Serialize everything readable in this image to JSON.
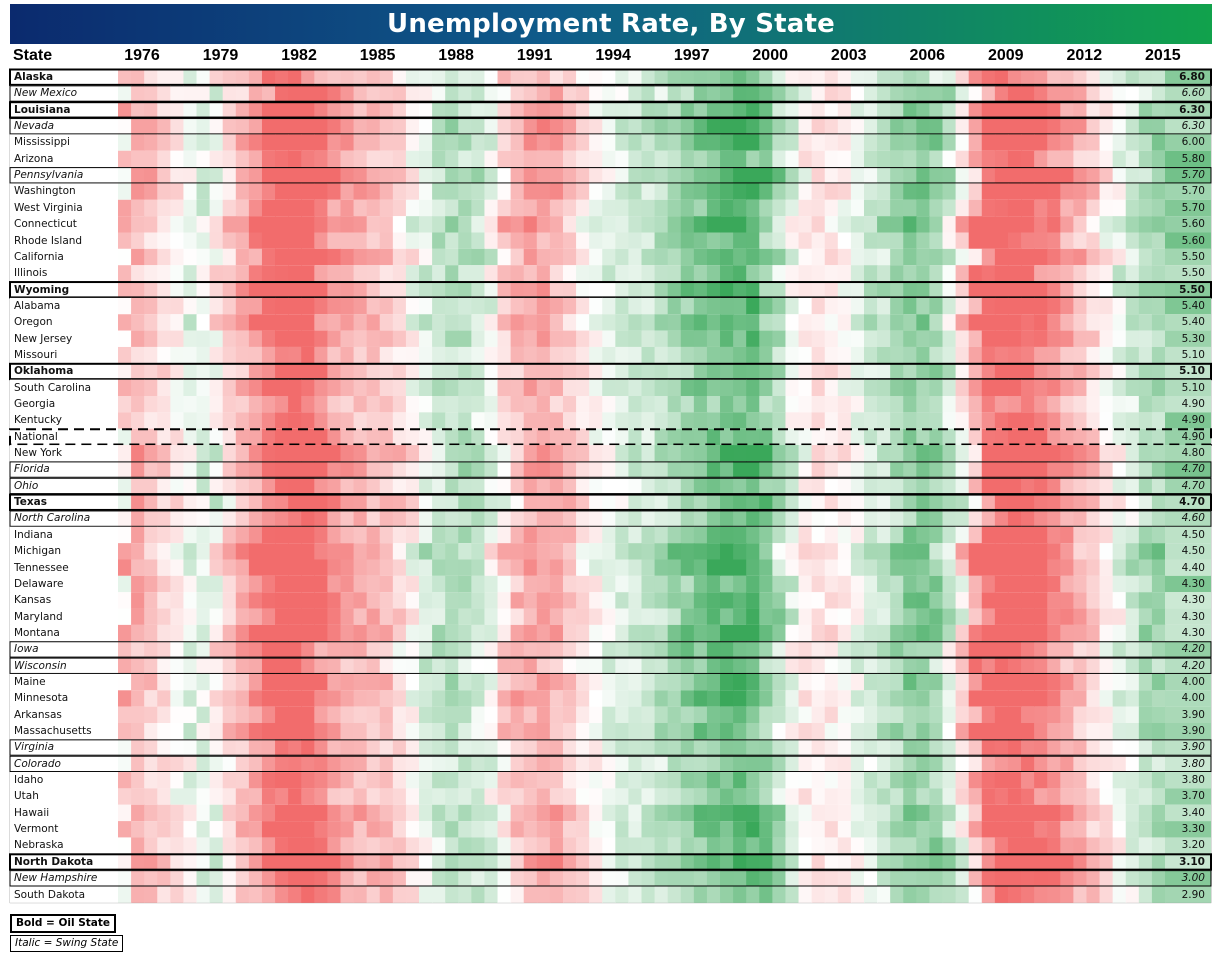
{
  "title": "Unemployment Rate, By State",
  "chart_data": {
    "type": "heatmap",
    "title": "Unemployment Rate, By State",
    "column_header": "State",
    "x_ticks": [
      "1976",
      "1979",
      "1982",
      "1985",
      "1988",
      "1991",
      "1994",
      "1997",
      "2000",
      "2003",
      "2006",
      "2009",
      "2012",
      "2015"
    ],
    "x_range": [
      1976,
      2016
    ],
    "color_scale": {
      "high": "#f26b6b",
      "mid": "#ffffff",
      "low": "#3aa85a"
    },
    "rows": [
      {
        "state": "Alaska",
        "value": "6.80",
        "style": "bold",
        "base": 6.8
      },
      {
        "state": "New Mexico",
        "value": "6.60",
        "style": "italic",
        "base": 6.6
      },
      {
        "state": "Louisiana",
        "value": "6.30",
        "style": "bold",
        "base": 6.3
      },
      {
        "state": "Nevada",
        "value": "6.30",
        "style": "italic",
        "base": 6.3
      },
      {
        "state": "Mississippi",
        "value": "6.00",
        "style": "normal",
        "base": 6.0
      },
      {
        "state": "Arizona",
        "value": "5.80",
        "style": "normal",
        "base": 5.8
      },
      {
        "state": "Pennsylvania",
        "value": "5.70",
        "style": "italic",
        "base": 5.7
      },
      {
        "state": "Washington",
        "value": "5.70",
        "style": "normal",
        "base": 5.7
      },
      {
        "state": "West Virginia",
        "value": "5.70",
        "style": "normal",
        "base": 5.7
      },
      {
        "state": "Connecticut",
        "value": "5.60",
        "style": "normal",
        "base": 5.6
      },
      {
        "state": "Rhode Island",
        "value": "5.60",
        "style": "normal",
        "base": 5.6
      },
      {
        "state": "California",
        "value": "5.50",
        "style": "normal",
        "base": 5.5
      },
      {
        "state": "Illinois",
        "value": "5.50",
        "style": "normal",
        "base": 5.5
      },
      {
        "state": "Wyoming",
        "value": "5.50",
        "style": "bold",
        "base": 5.5
      },
      {
        "state": "Alabama",
        "value": "5.40",
        "style": "normal",
        "base": 5.4
      },
      {
        "state": "Oregon",
        "value": "5.40",
        "style": "normal",
        "base": 5.4
      },
      {
        "state": "New Jersey",
        "value": "5.30",
        "style": "normal",
        "base": 5.3
      },
      {
        "state": "Missouri",
        "value": "5.10",
        "style": "normal",
        "base": 5.1
      },
      {
        "state": "Oklahoma",
        "value": "5.10",
        "style": "bold",
        "base": 5.1
      },
      {
        "state": "South Carolina",
        "value": "5.10",
        "style": "normal",
        "base": 5.1
      },
      {
        "state": "Georgia",
        "value": "4.90",
        "style": "normal",
        "base": 4.9
      },
      {
        "state": "Kentucky",
        "value": "4.90",
        "style": "normal",
        "base": 4.9
      },
      {
        "state": "National",
        "value": "4.90",
        "style": "national",
        "base": 4.9
      },
      {
        "state": "New York",
        "value": "4.80",
        "style": "normal",
        "base": 4.8
      },
      {
        "state": "Florida",
        "value": "4.70",
        "style": "italic",
        "base": 4.7
      },
      {
        "state": "Ohio",
        "value": "4.70",
        "style": "italic",
        "base": 4.7
      },
      {
        "state": "Texas",
        "value": "4.70",
        "style": "bold",
        "base": 4.7
      },
      {
        "state": "North Carolina",
        "value": "4.60",
        "style": "italic",
        "base": 4.6
      },
      {
        "state": "Indiana",
        "value": "4.50",
        "style": "normal",
        "base": 4.5
      },
      {
        "state": "Michigan",
        "value": "4.50",
        "style": "normal",
        "base": 4.5
      },
      {
        "state": "Tennessee",
        "value": "4.40",
        "style": "normal",
        "base": 4.4
      },
      {
        "state": "Delaware",
        "value": "4.30",
        "style": "normal",
        "base": 4.3
      },
      {
        "state": "Kansas",
        "value": "4.30",
        "style": "normal",
        "base": 4.3
      },
      {
        "state": "Maryland",
        "value": "4.30",
        "style": "normal",
        "base": 4.3
      },
      {
        "state": "Montana",
        "value": "4.30",
        "style": "normal",
        "base": 4.3
      },
      {
        "state": "Iowa",
        "value": "4.20",
        "style": "italic",
        "base": 4.2
      },
      {
        "state": "Wisconsin",
        "value": "4.20",
        "style": "italic",
        "base": 4.2
      },
      {
        "state": "Maine",
        "value": "4.00",
        "style": "normal",
        "base": 4.0
      },
      {
        "state": "Minnesota",
        "value": "4.00",
        "style": "normal",
        "base": 4.0
      },
      {
        "state": "Arkansas",
        "value": "3.90",
        "style": "normal",
        "base": 3.9
      },
      {
        "state": "Massachusetts",
        "value": "3.90",
        "style": "normal",
        "base": 3.9
      },
      {
        "state": "Virginia",
        "value": "3.90",
        "style": "italic",
        "base": 3.9
      },
      {
        "state": "Colorado",
        "value": "3.80",
        "style": "italic",
        "base": 3.8
      },
      {
        "state": "Idaho",
        "value": "3.80",
        "style": "normal",
        "base": 3.8
      },
      {
        "state": "Utah",
        "value": "3.70",
        "style": "normal",
        "base": 3.7
      },
      {
        "state": "Hawaii",
        "value": "3.40",
        "style": "normal",
        "base": 3.4
      },
      {
        "state": "Vermont",
        "value": "3.30",
        "style": "normal",
        "base": 3.3
      },
      {
        "state": "Nebraska",
        "value": "3.20",
        "style": "normal",
        "base": 3.2
      },
      {
        "state": "North Dakota",
        "value": "3.10",
        "style": "bold",
        "base": 3.1
      },
      {
        "state": "New Hampshire",
        "value": "3.00",
        "style": "italic",
        "base": 3.0
      },
      {
        "state": "South Dakota",
        "value": "2.90",
        "style": "normal",
        "base": 2.9
      }
    ],
    "legend": [
      "Bold = Oil State",
      "Italic = Swing State"
    ]
  }
}
